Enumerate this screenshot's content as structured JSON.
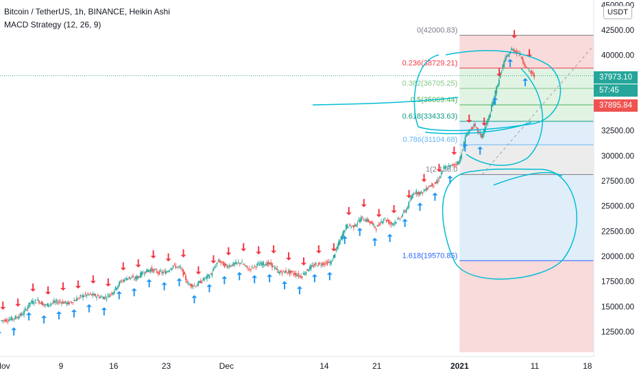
{
  "header": {
    "symbol_line": "Bitcoin / TetherUS, 1h, BINANCE, Heikin Ashi",
    "indicator_line": "MACD Strategy (12, 26, 9)"
  },
  "axis": {
    "currency_button": "USDT",
    "price_ticks": [
      "45000.00",
      "42500.00",
      "40000.00",
      "37500.00",
      "35000.00",
      "32500.00",
      "30000.00",
      "27500.00",
      "25000.00",
      "22500.00",
      "20000.00",
      "17500.00",
      "15000.00",
      "12500.00"
    ],
    "time_ticks": [
      "Nov",
      "9",
      "16",
      "23",
      "Dec",
      "14",
      "21",
      "2021",
      "11",
      "18"
    ],
    "tags": {
      "last_price": "37973.10",
      "countdown": "57:45",
      "prev_price": "37895.84"
    }
  },
  "colors": {
    "up": "#26a69a",
    "down": "#ef5350",
    "buy_arrow": "#2196f3",
    "sell_arrow": "#f23645",
    "drawing": "#00bcd4",
    "fib_zone_red": "#f7cfcf",
    "fib_zone_green": "#d7efd9",
    "fib_zone_blue": "#d6e8f8",
    "fib_zone_gray": "#e5e5e5"
  },
  "chart_data": {
    "type": "candlestick",
    "x_unit": "date",
    "y_unit": "USDT",
    "ylim": [
      11000,
      46000
    ],
    "series": [
      {
        "values": [
          {
            "date": "2020-11-01",
            "price": 13600
          },
          {
            "date": "2020-11-02",
            "price": 13700
          },
          {
            "date": "2020-11-03",
            "price": 13900
          },
          {
            "date": "2020-11-04",
            "price": 14300
          },
          {
            "date": "2020-11-05",
            "price": 15400
          },
          {
            "date": "2020-11-06",
            "price": 15600
          },
          {
            "date": "2020-11-07",
            "price": 15100
          },
          {
            "date": "2020-11-08",
            "price": 15400
          },
          {
            "date": "2020-11-09",
            "price": 15500
          },
          {
            "date": "2020-11-10",
            "price": 15300
          },
          {
            "date": "2020-11-11",
            "price": 15700
          },
          {
            "date": "2020-11-12",
            "price": 16100
          },
          {
            "date": "2020-11-13",
            "price": 16200
          },
          {
            "date": "2020-11-14",
            "price": 16000
          },
          {
            "date": "2020-11-15",
            "price": 15900
          },
          {
            "date": "2020-11-16",
            "price": 16500
          },
          {
            "date": "2020-11-17",
            "price": 17500
          },
          {
            "date": "2020-11-18",
            "price": 17900
          },
          {
            "date": "2020-11-19",
            "price": 17800
          },
          {
            "date": "2020-11-20",
            "price": 18400
          },
          {
            "date": "2020-11-21",
            "price": 18700
          },
          {
            "date": "2020-11-22",
            "price": 18400
          },
          {
            "date": "2020-11-23",
            "price": 18400
          },
          {
            "date": "2020-11-24",
            "price": 19100
          },
          {
            "date": "2020-11-25",
            "price": 18800
          },
          {
            "date": "2020-11-26",
            "price": 17200
          },
          {
            "date": "2020-11-27",
            "price": 17100
          },
          {
            "date": "2020-11-28",
            "price": 17700
          },
          {
            "date": "2020-11-29",
            "price": 18200
          },
          {
            "date": "2020-11-30",
            "price": 19600
          },
          {
            "date": "2020-12-01",
            "price": 19000
          },
          {
            "date": "2020-12-02",
            "price": 19200
          },
          {
            "date": "2020-12-03",
            "price": 19400
          },
          {
            "date": "2020-12-04",
            "price": 18700
          },
          {
            "date": "2020-12-05",
            "price": 19100
          },
          {
            "date": "2020-12-06",
            "price": 19300
          },
          {
            "date": "2020-12-07",
            "price": 19200
          },
          {
            "date": "2020-12-08",
            "price": 18400
          },
          {
            "date": "2020-12-09",
            "price": 18500
          },
          {
            "date": "2020-12-10",
            "price": 18300
          },
          {
            "date": "2020-12-11",
            "price": 18000
          },
          {
            "date": "2020-12-12",
            "price": 18800
          },
          {
            "date": "2020-12-13",
            "price": 19200
          },
          {
            "date": "2020-12-14",
            "price": 19300
          },
          {
            "date": "2020-12-15",
            "price": 19400
          },
          {
            "date": "2020-12-16",
            "price": 21300
          },
          {
            "date": "2020-12-17",
            "price": 23000
          },
          {
            "date": "2020-12-18",
            "price": 23000
          },
          {
            "date": "2020-12-19",
            "price": 23800
          },
          {
            "date": "2020-12-20",
            "price": 23500
          },
          {
            "date": "2020-12-21",
            "price": 22800
          },
          {
            "date": "2020-12-22",
            "price": 23800
          },
          {
            "date": "2020-12-23",
            "price": 23200
          },
          {
            "date": "2020-12-24",
            "price": 23700
          },
          {
            "date": "2020-12-25",
            "price": 24700
          },
          {
            "date": "2020-12-26",
            "price": 26400
          },
          {
            "date": "2020-12-27",
            "price": 26300
          },
          {
            "date": "2020-12-28",
            "price": 27000
          },
          {
            "date": "2020-12-29",
            "price": 27300
          },
          {
            "date": "2020-12-30",
            "price": 28800
          },
          {
            "date": "2020-12-31",
            "price": 29000
          },
          {
            "date": "2021-01-01",
            "price": 29400
          },
          {
            "date": "2021-01-02",
            "price": 32200
          },
          {
            "date": "2021-01-03",
            "price": 33000
          },
          {
            "date": "2021-01-04",
            "price": 31900
          },
          {
            "date": "2021-01-05",
            "price": 33900
          },
          {
            "date": "2021-01-06",
            "price": 36800
          },
          {
            "date": "2021-01-07",
            "price": 39400
          },
          {
            "date": "2021-01-08",
            "price": 40600
          },
          {
            "date": "2021-01-09",
            "price": 40200
          },
          {
            "date": "2021-01-10",
            "price": 38700
          },
          {
            "date": "2021-01-11",
            "price": 37900
          }
        ]
      }
    ],
    "fibonacci": {
      "levels": [
        {
          "ratio": "0",
          "price": 42000.83,
          "label": "0(42000.83)"
        },
        {
          "ratio": "0.236",
          "price": 38729.21,
          "label": "0.236(38729.21)"
        },
        {
          "ratio": "0.382",
          "price": 36705.25,
          "label": "0.382(36705.25)"
        },
        {
          "ratio": "0.5",
          "price": 35069.44,
          "label": "0.5(35069.44)"
        },
        {
          "ratio": "0.618",
          "price": 33433.63,
          "label": "0.618(33433.63)"
        },
        {
          "ratio": "0.786",
          "price": 31104.68,
          "label": "0.786(31104.68)"
        },
        {
          "ratio": "1",
          "price": 28138.0,
          "label": "1(2 138.0"
        },
        {
          "ratio": "1.618",
          "price": 19570.85,
          "label": "1.618(19570.85)"
        }
      ],
      "start_date": "2021-01-01",
      "end_date": "2021-01-20"
    },
    "last_price_line": 37973.1
  }
}
